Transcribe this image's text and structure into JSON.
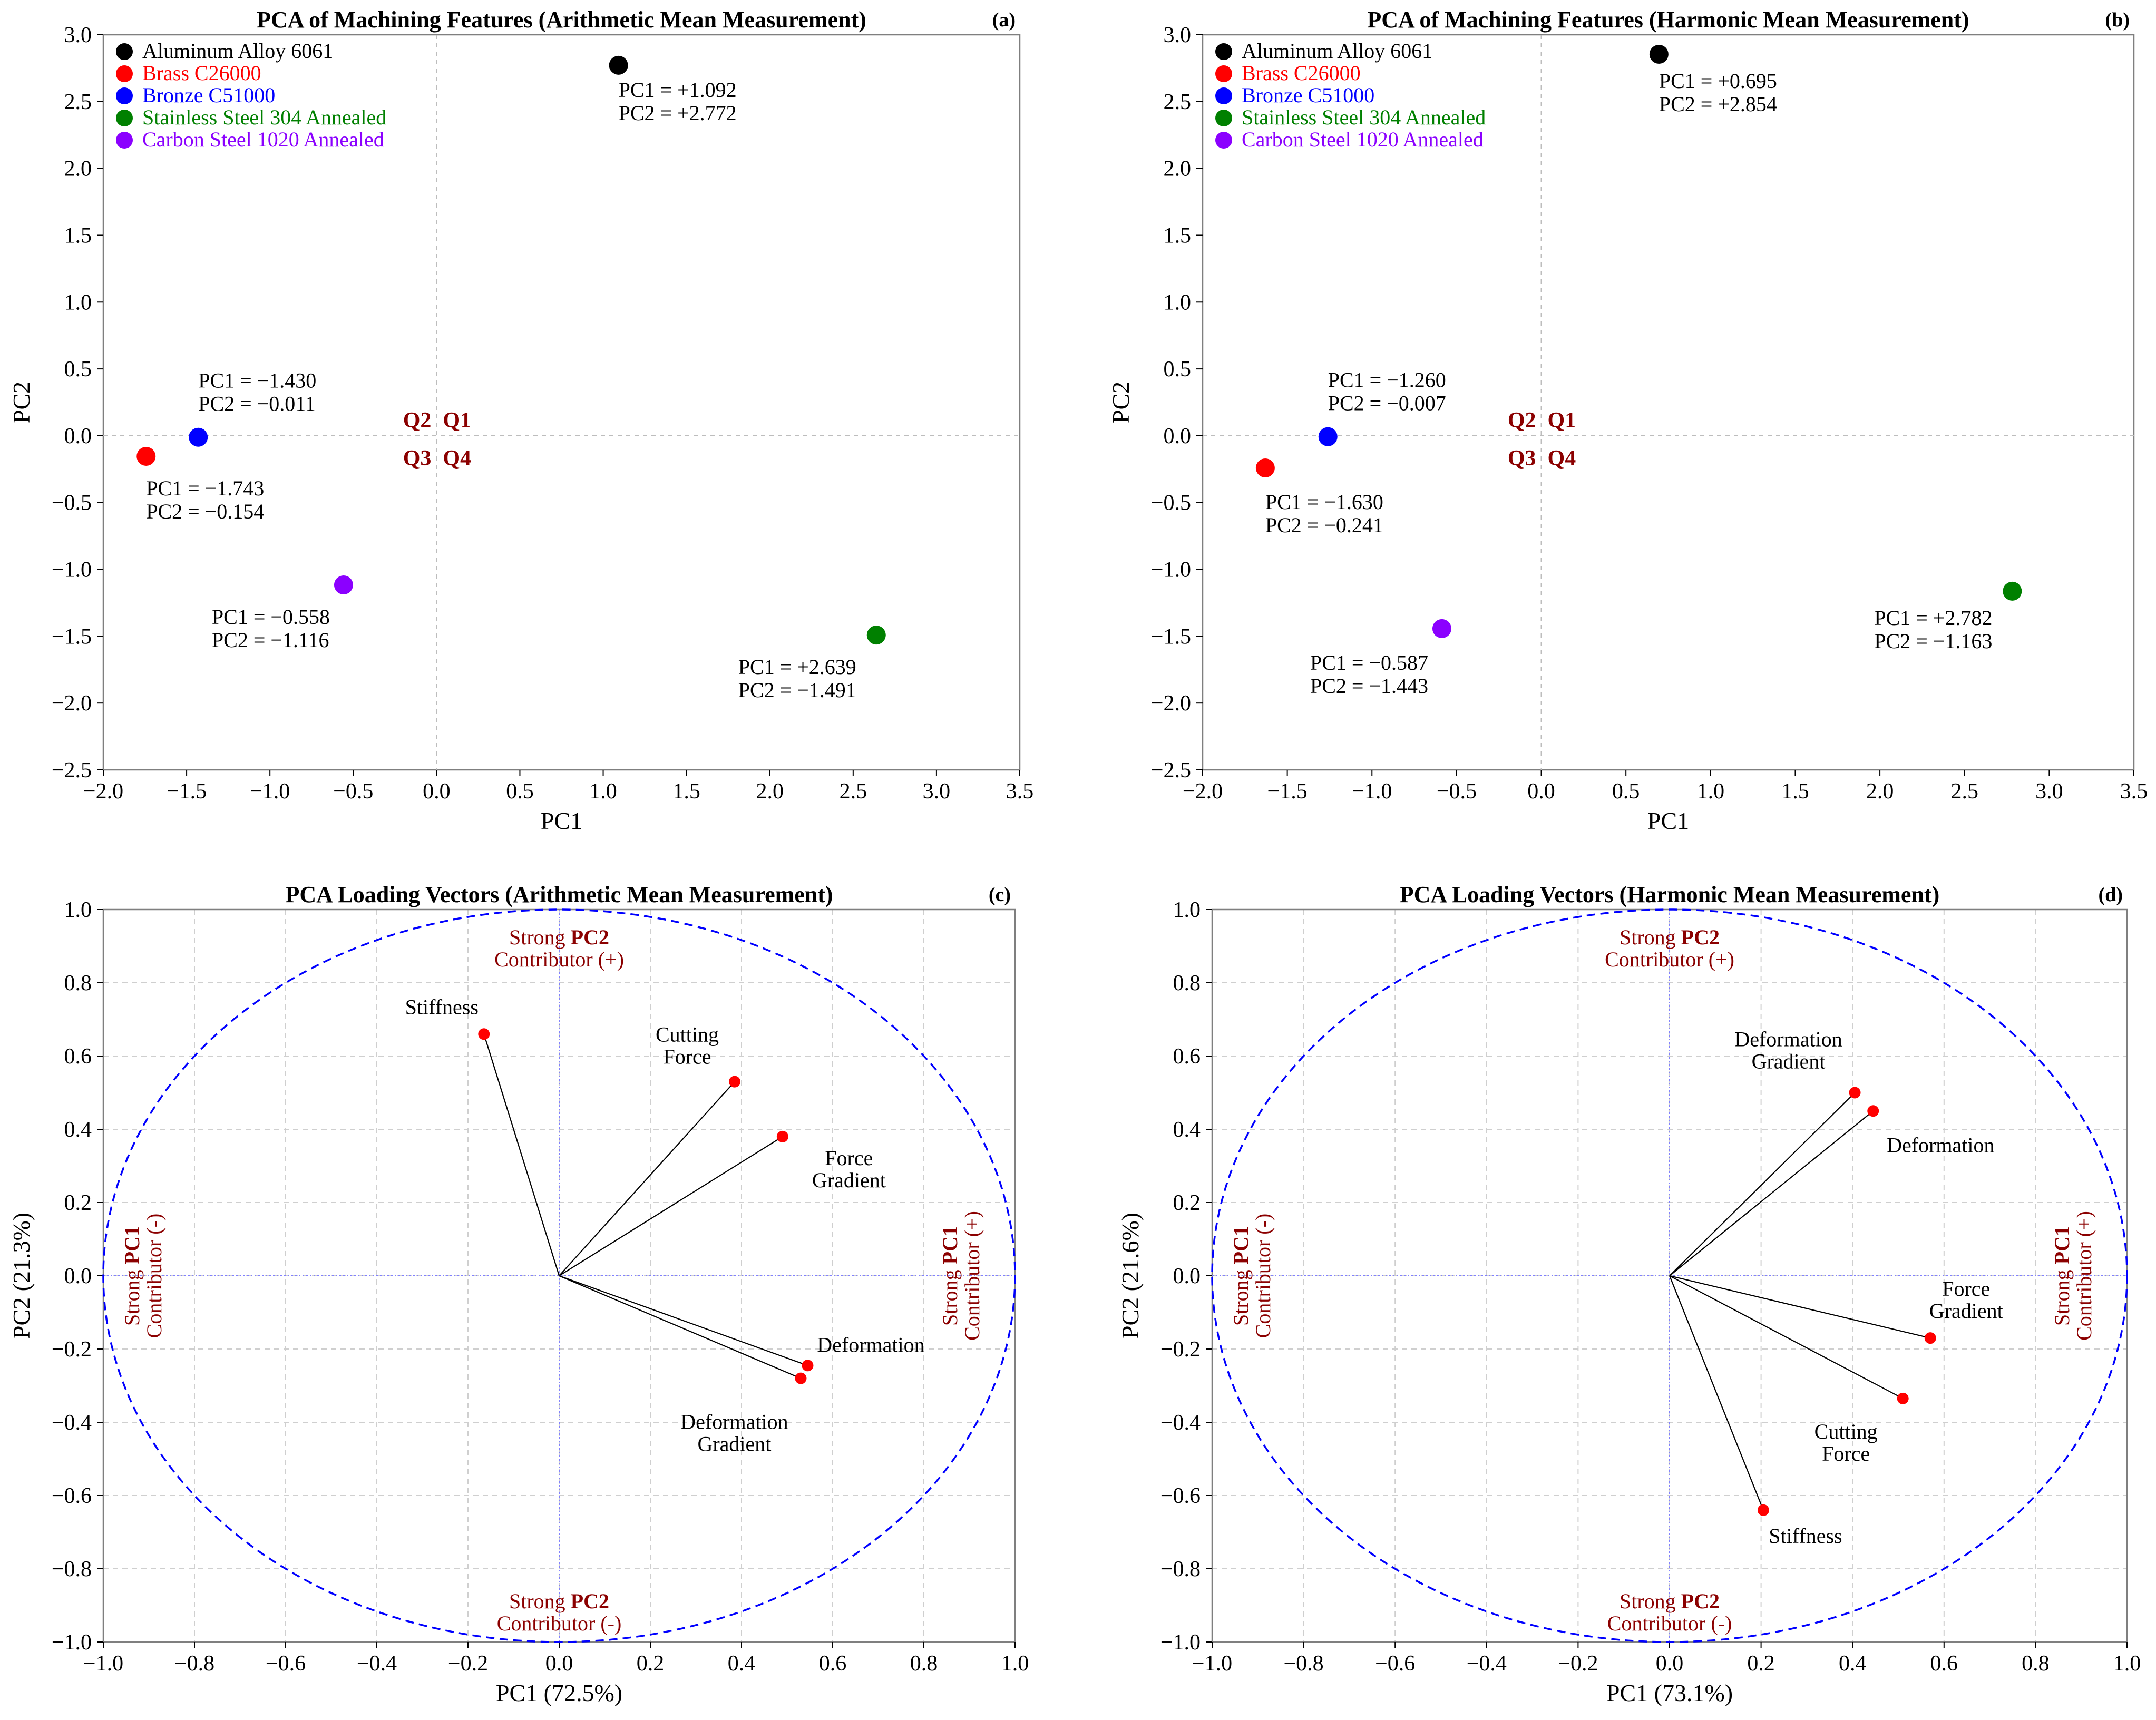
{
  "colors": {
    "aluminum": "#000000",
    "brass": "#ff0000",
    "bronze": "#0000ff",
    "stainless": "#008000",
    "carbon": "#8b00ff",
    "quadrant": "#8b0000",
    "circle": "#0000ff",
    "vector_point": "#ff0000"
  },
  "chart_data": [
    {
      "id": "a",
      "type": "scatter",
      "title": "PCA of Machining Features (Arithmetic Mean Measurement)",
      "panel_tag": "(a)",
      "xlabel": "PC1",
      "ylabel": "PC2",
      "xlim": [
        -2.0,
        3.5
      ],
      "ylim": [
        -2.5,
        3.0
      ],
      "xticks": [
        "−2.0",
        "−1.5",
        "−1.0",
        "−0.5",
        "0.0",
        "0.5",
        "1.0",
        "1.5",
        "2.0",
        "2.5",
        "3.0",
        "3.5"
      ],
      "yticks": [
        "−2.5",
        "−2.0",
        "−1.5",
        "−1.0",
        "−0.5",
        "0.0",
        "0.5",
        "1.0",
        "1.5",
        "2.0",
        "2.5",
        "3.0"
      ],
      "legend": [
        "Aluminum Alloy 6061",
        "Brass C26000",
        "Bronze C51000",
        "Stainless Steel 304 Annealed",
        "Carbon Steel 1020 Annealed"
      ],
      "quadrants": [
        "Q2",
        "Q1",
        "Q3",
        "Q4"
      ],
      "points": [
        {
          "name": "Aluminum Alloy 6061",
          "color_key": "aluminum",
          "x": 1.092,
          "y": 2.772,
          "label1": "PC1 = +1.092",
          "label2": "PC2 = +2.772"
        },
        {
          "name": "Brass C26000",
          "color_key": "brass",
          "x": -1.743,
          "y": -0.154,
          "label1": "PC1 = −1.743",
          "label2": "PC2 = −0.154"
        },
        {
          "name": "Bronze C51000",
          "color_key": "bronze",
          "x": -1.43,
          "y": -0.011,
          "label1": "PC1 = −1.430",
          "label2": "PC2 = −0.011"
        },
        {
          "name": "Stainless Steel 304 Annealed",
          "color_key": "stainless",
          "x": 2.639,
          "y": -1.491,
          "label1": "PC1 = +2.639",
          "label2": "PC2 = −1.491"
        },
        {
          "name": "Carbon Steel 1020 Annealed",
          "color_key": "carbon",
          "x": -0.558,
          "y": -1.116,
          "label1": "PC1 = −0.558",
          "label2": "PC2 = −1.116"
        }
      ]
    },
    {
      "id": "b",
      "type": "scatter",
      "title": "PCA of Machining Features (Harmonic Mean Measurement)",
      "panel_tag": "(b)",
      "xlabel": "PC1",
      "ylabel": "PC2",
      "xlim": [
        -2.0,
        3.5
      ],
      "ylim": [
        -2.5,
        3.0
      ],
      "xticks": [
        "−2.0",
        "−1.5",
        "−1.0",
        "−0.5",
        "0.0",
        "0.5",
        "1.0",
        "1.5",
        "2.0",
        "2.5",
        "3.0",
        "3.5"
      ],
      "yticks": [
        "−2.5",
        "−2.0",
        "−1.5",
        "−1.0",
        "−0.5",
        "0.0",
        "0.5",
        "1.0",
        "1.5",
        "2.0",
        "2.5",
        "3.0"
      ],
      "legend": [
        "Aluminum Alloy 6061",
        "Brass C26000",
        "Bronze C51000",
        "Stainless Steel 304 Annealed",
        "Carbon Steel 1020 Annealed"
      ],
      "quadrants": [
        "Q2",
        "Q1",
        "Q3",
        "Q4"
      ],
      "points": [
        {
          "name": "Aluminum Alloy 6061",
          "color_key": "aluminum",
          "x": 0.695,
          "y": 2.854,
          "label1": "PC1 = +0.695",
          "label2": "PC2 = +2.854"
        },
        {
          "name": "Brass C26000",
          "color_key": "brass",
          "x": -1.63,
          "y": -0.241,
          "label1": "PC1 = −1.630",
          "label2": "PC2 = −0.241"
        },
        {
          "name": "Bronze C51000",
          "color_key": "bronze",
          "x": -1.26,
          "y": -0.007,
          "label1": "PC1 = −1.260",
          "label2": "PC2 = −0.007"
        },
        {
          "name": "Stainless Steel 304 Annealed",
          "color_key": "stainless",
          "x": 2.782,
          "y": -1.163,
          "label1": "PC1 = +2.782",
          "label2": "PC2 = −1.163"
        },
        {
          "name": "Carbon Steel 1020 Annealed",
          "color_key": "carbon",
          "x": -0.587,
          "y": -1.443,
          "label1": "PC1 = −0.587",
          "label2": "PC2 = −1.443"
        }
      ]
    },
    {
      "id": "c",
      "type": "scatter",
      "title": "PCA Loading Vectors (Arithmetic Mean Measurement)",
      "panel_tag": "(c)",
      "xlabel": "PC1 (72.5%)",
      "ylabel": "PC2 (21.3%)",
      "xlim": [
        -1.0,
        1.0
      ],
      "ylim": [
        -1.0,
        1.0
      ],
      "xticks": [
        "−1.0",
        "−0.8",
        "−0.6",
        "−0.4",
        "−0.2",
        "0.0",
        "0.2",
        "0.4",
        "0.6",
        "0.8",
        "1.0"
      ],
      "yticks": [
        "−1.0",
        "−0.8",
        "−0.6",
        "−0.4",
        "−0.2",
        "0.0",
        "0.2",
        "0.4",
        "0.6",
        "0.8",
        "1.0"
      ],
      "contributors": {
        "strong": "Strong",
        "pc1": "PC1",
        "pc2": "PC2",
        "plus": "Contributor (+)",
        "minus": "Contributor (-)"
      },
      "vectors": [
        {
          "name": "Stiffness",
          "x": -0.165,
          "y": 0.66,
          "lines": [
            "Stiffness"
          ]
        },
        {
          "name": "Cutting Force",
          "x": 0.385,
          "y": 0.53,
          "lines": [
            "Cutting",
            "Force"
          ]
        },
        {
          "name": "Force Gradient",
          "x": 0.49,
          "y": 0.38,
          "lines": [
            "Force",
            "Gradient"
          ]
        },
        {
          "name": "Deformation",
          "x": 0.545,
          "y": -0.245,
          "lines": [
            "Deformation"
          ]
        },
        {
          "name": "Deformation Gradient",
          "x": 0.53,
          "y": -0.28,
          "lines": [
            "Deformation",
            "Gradient"
          ]
        }
      ]
    },
    {
      "id": "d",
      "type": "scatter",
      "title": "PCA Loading Vectors (Harmonic Mean Measurement)",
      "panel_tag": "(d)",
      "xlabel": "PC1 (73.1%)",
      "ylabel": "PC2 (21.6%)",
      "xlim": [
        -1.0,
        1.0
      ],
      "ylim": [
        -1.0,
        1.0
      ],
      "xticks": [
        "−1.0",
        "−0.8",
        "−0.6",
        "−0.4",
        "−0.2",
        "0.0",
        "0.2",
        "0.4",
        "0.6",
        "0.8",
        "1.0"
      ],
      "yticks": [
        "−1.0",
        "−0.8",
        "−0.6",
        "−0.4",
        "−0.2",
        "0.0",
        "0.2",
        "0.4",
        "0.6",
        "0.8",
        "1.0"
      ],
      "contributors": {
        "strong": "Strong",
        "pc1": "PC1",
        "pc2": "PC2",
        "plus": "Contributor (+)",
        "minus": "Contributor (-)"
      },
      "vectors": [
        {
          "name": "Deformation Gradient",
          "x": 0.405,
          "y": 0.5,
          "lines": [
            "Deformation",
            "Gradient"
          ]
        },
        {
          "name": "Deformation",
          "x": 0.445,
          "y": 0.45,
          "lines": [
            "Deformation"
          ]
        },
        {
          "name": "Force Gradient",
          "x": 0.57,
          "y": -0.17,
          "lines": [
            "Force",
            "Gradient"
          ]
        },
        {
          "name": "Cutting Force",
          "x": 0.51,
          "y": -0.335,
          "lines": [
            "Cutting",
            "Force"
          ]
        },
        {
          "name": "Stiffness",
          "x": 0.205,
          "y": -0.64,
          "lines": [
            "Stiffness"
          ]
        }
      ]
    }
  ]
}
